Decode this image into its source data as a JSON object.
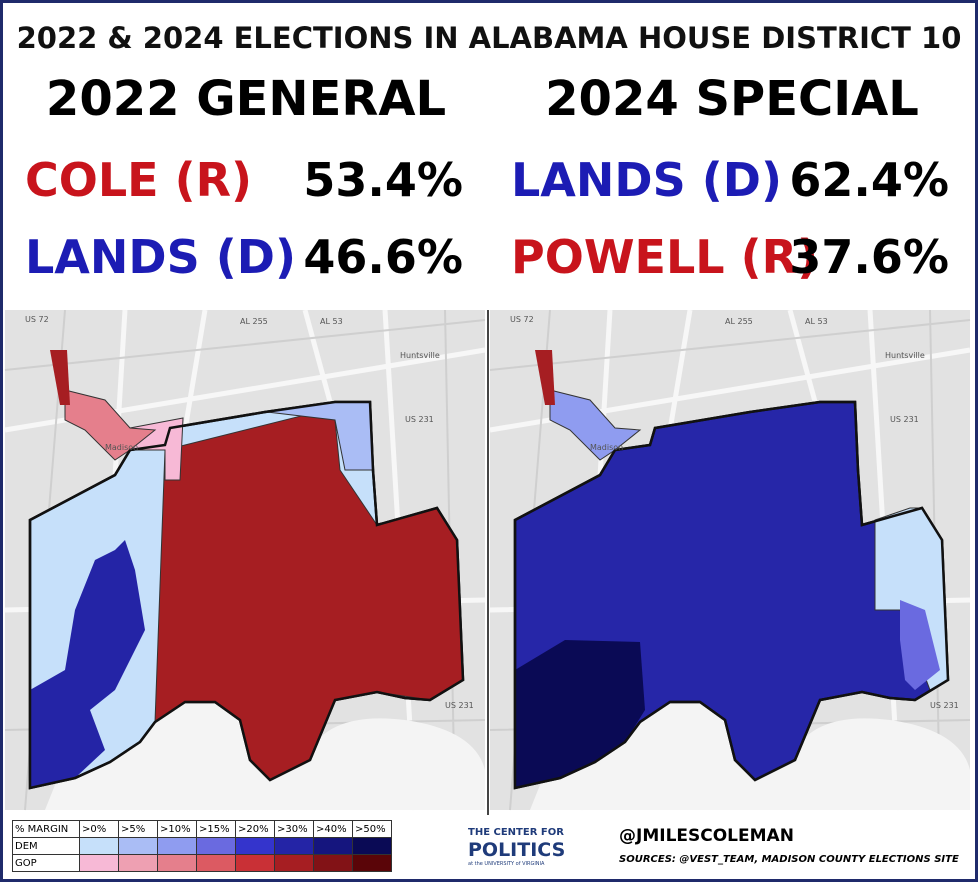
{
  "header": {
    "title": "2022 & 2024 ELECTIONS IN ALABAMA HOUSE DISTRICT 10"
  },
  "panels": [
    {
      "title": "2022 GENERAL",
      "candidates": [
        {
          "name": "COLE (R)",
          "pct": "53.4%",
          "color": "#c8141c"
        },
        {
          "name": "LANDS (D)",
          "pct": "46.6%",
          "color": "#1c1cb4"
        }
      ],
      "map_labels": [
        "US 72",
        "AL 255",
        "AL 53",
        "Huntsville",
        "Madison",
        "US 231",
        "US 231"
      ]
    },
    {
      "title": "2024 SPECIAL",
      "candidates": [
        {
          "name": "LANDS (D)",
          "pct": "62.4%",
          "color": "#1c1cb4"
        },
        {
          "name": "POWELL (R)",
          "pct": "37.6%",
          "color": "#c8141c"
        }
      ],
      "map_labels": [
        "US 72",
        "AL 255",
        "AL 53",
        "Huntsville",
        "Madison",
        "US 231",
        "US 231"
      ]
    }
  ],
  "legend": {
    "header": [
      "% MARGIN",
      ">0%",
      ">5%",
      ">10%",
      ">15%",
      ">20%",
      ">30%",
      ">40%",
      ">50%"
    ],
    "rows": [
      {
        "label": "DEM",
        "colors": [
          "#c6e0fa",
          "#aabdf5",
          "#8f9cf0",
          "#6a6ae0",
          "#3434cc",
          "#2424a6",
          "#15157e",
          "#0a0a55"
        ]
      },
      {
        "label": "GOP",
        "colors": [
          "#f7b9d6",
          "#eea0b2",
          "#e57f8c",
          "#dc5a62",
          "#c93036",
          "#a61e22",
          "#821216",
          "#5a0508"
        ]
      }
    ]
  },
  "logo": {
    "line1": "THE CENTER FOR",
    "line2": "POLITICS",
    "line3": "at the UNIVERSITY of VIRGINIA"
  },
  "credits": {
    "handle": "@JMILESCOLEMAN",
    "sources": "SOURCES: @VEST_TEAM, MADISON COUNTY ELECTIONS SITE"
  }
}
